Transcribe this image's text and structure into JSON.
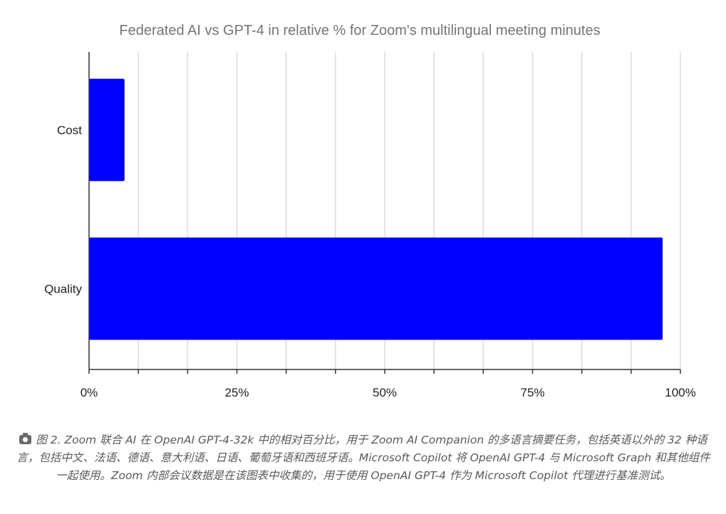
{
  "chart_data": {
    "type": "bar",
    "orientation": "horizontal",
    "title": "Federated AI vs GPT-4 in relative % for Zoom's multilingual meeting minutes",
    "categories": [
      "Cost",
      "Quality"
    ],
    "values": [
      6,
      97
    ],
    "xlim": [
      0,
      100
    ],
    "x_ticks": [
      "0%",
      "25%",
      "50%",
      "75%",
      "100%"
    ],
    "x_tick_values": [
      0,
      25,
      50,
      75,
      100
    ],
    "grid": true,
    "bar_color": "#0000ff",
    "xlabel": "",
    "ylabel": ""
  },
  "caption": {
    "icon": "camera-icon",
    "text": "图 2. Zoom 联合 AI 在 OpenAI GPT-4-32k 中的相对百分比，用于 Zoom AI Companion 的多语言摘要任务，包括英语以外的 32 种语言，包括中文、法语、德语、意大利语、日语、葡萄牙语和西班牙语。Microsoft Copilot 将 OpenAI GPT-4 与 Microsoft Graph 和其他组件一起使用。Zoom 内部会议数据是在该图表中收集的，用于使用 OpenAI GPT-4 作为 Microsoft Copilot 代理进行基准测试。"
  }
}
